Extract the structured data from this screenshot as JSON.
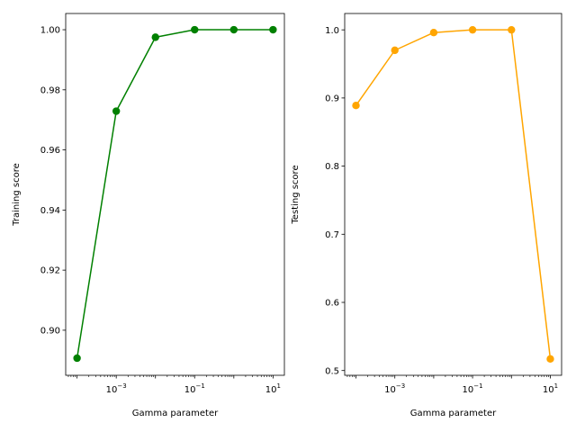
{
  "chart_data": [
    {
      "type": "line",
      "xscale": "log",
      "x": [
        0.0001,
        0.001,
        0.01,
        0.1,
        1,
        10
      ],
      "series": [
        {
          "values": [
            0.8907,
            0.9729,
            0.9975,
            1.0,
            1.0,
            1.0
          ],
          "color": "#008000"
        }
      ],
      "xlabel": "Gamma parameter",
      "ylabel": "Training score",
      "xlim": [
        5.13e-05,
        19.5
      ],
      "ylim": [
        0.885,
        1.0054
      ],
      "xticks": [
        {
          "value": 0.001,
          "base": "10",
          "exp": "−3"
        },
        {
          "value": 0.1,
          "base": "10",
          "exp": "−1"
        },
        {
          "value": 10,
          "base": "10",
          "exp": "1"
        }
      ],
      "yticks": [
        {
          "value": 0.9,
          "label": "0.90"
        },
        {
          "value": 0.92,
          "label": "0.92"
        },
        {
          "value": 0.94,
          "label": "0.94"
        },
        {
          "value": 0.96,
          "label": "0.96"
        },
        {
          "value": 0.98,
          "label": "0.98"
        },
        {
          "value": 1.0,
          "label": "1.00"
        }
      ],
      "grid": false
    },
    {
      "type": "line",
      "xscale": "log",
      "x": [
        0.0001,
        0.001,
        0.01,
        0.1,
        1,
        10
      ],
      "series": [
        {
          "values": [
            0.889,
            0.97,
            0.996,
            1.0,
            1.0,
            0.517
          ],
          "color": "#ffa500"
        }
      ],
      "xlabel": "Gamma parameter",
      "ylabel": "Testing score",
      "xlim": [
        5.13e-05,
        19.5
      ],
      "ylim": [
        0.493,
        1.024
      ],
      "xticks": [
        {
          "value": 0.001,
          "base": "10",
          "exp": "−3"
        },
        {
          "value": 0.1,
          "base": "10",
          "exp": "−1"
        },
        {
          "value": 10,
          "base": "10",
          "exp": "1"
        }
      ],
      "yticks": [
        {
          "value": 0.5,
          "label": "0.5"
        },
        {
          "value": 0.6,
          "label": "0.6"
        },
        {
          "value": 0.7,
          "label": "0.7"
        },
        {
          "value": 0.8,
          "label": "0.8"
        },
        {
          "value": 0.9,
          "label": "0.9"
        },
        {
          "value": 1.0,
          "label": "1.0"
        }
      ],
      "grid": false
    }
  ]
}
